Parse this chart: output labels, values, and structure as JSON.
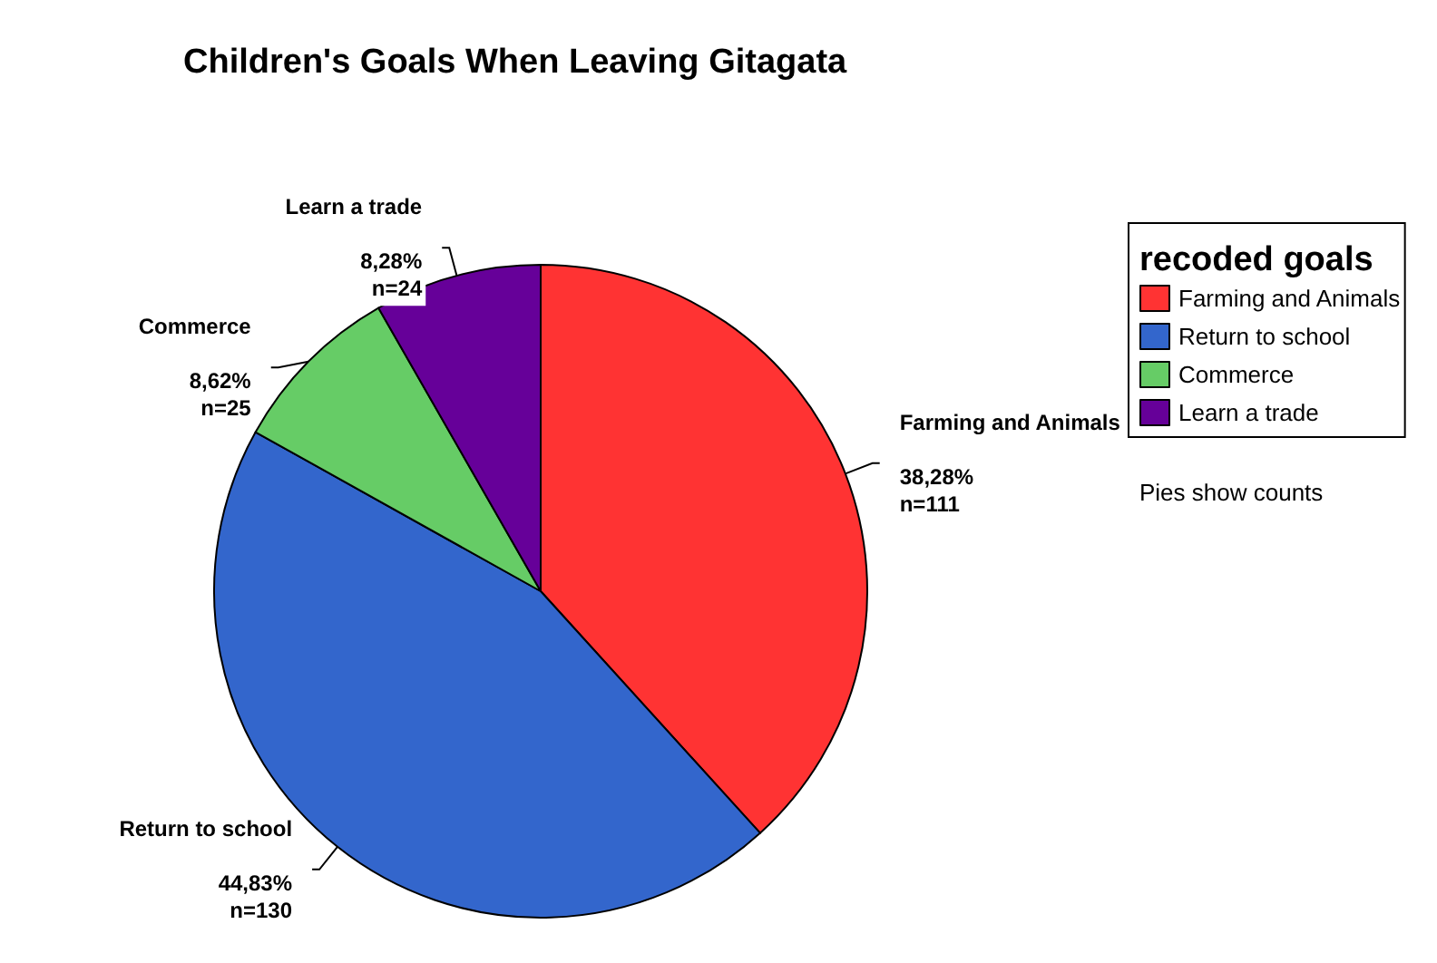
{
  "chart_data": {
    "type": "pie",
    "title": "Children's Goals When Leaving Gitagata",
    "categories": [
      "Farming and Animals",
      "Return to school",
      "Commerce",
      "Learn a trade"
    ],
    "values": [
      111,
      130,
      25,
      24
    ],
    "colors": [
      "#ff3333",
      "#3366cc",
      "#66cc66",
      "#660099"
    ],
    "value_labels": [
      "38,28%\nn=111",
      "44,83%\nn=130",
      "8,62%\nn=25",
      "8,28%\nn=24"
    ],
    "legend": "right",
    "legend_title": "recoded goals",
    "annotations": [
      "Pies show counts"
    ]
  }
}
